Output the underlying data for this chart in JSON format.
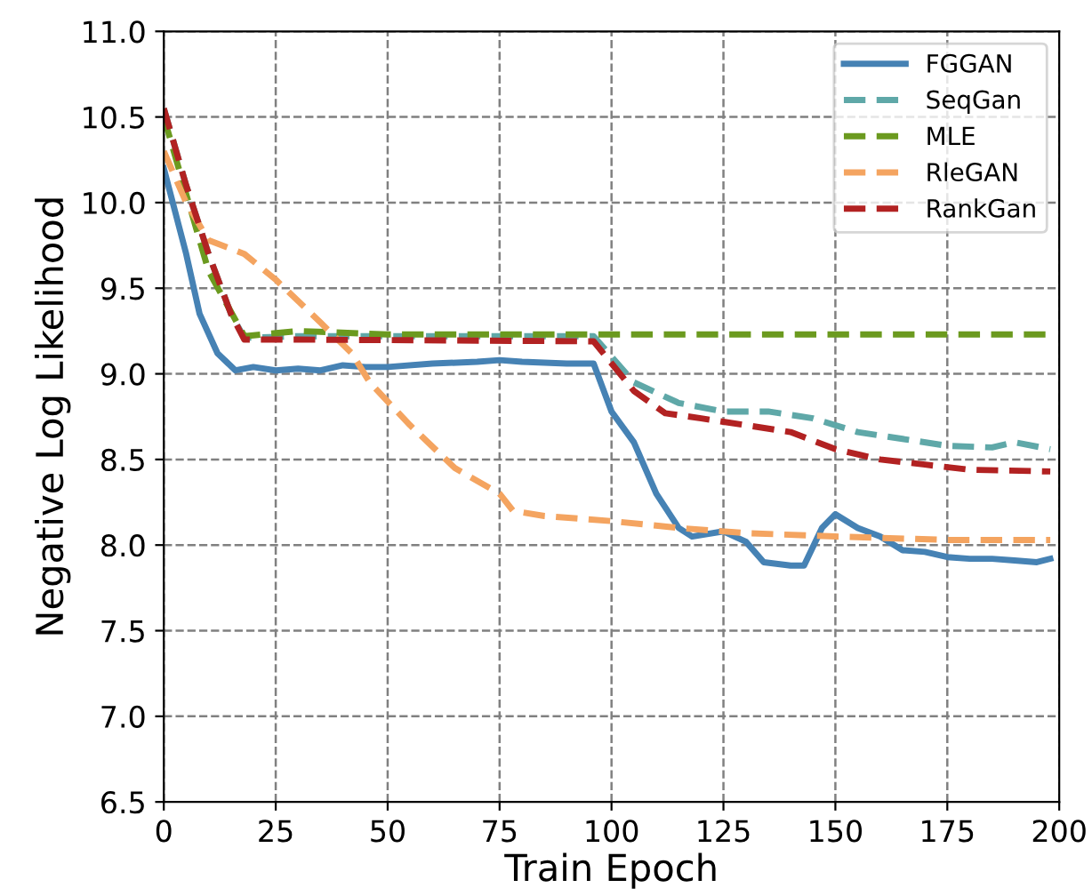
{
  "chart_data": {
    "type": "line",
    "xlabel": "Train Epoch",
    "ylabel": "Negative Log Likelihood",
    "xlim": [
      0,
      200
    ],
    "ylim": [
      6.5,
      11.0
    ],
    "xticks": [
      0,
      25,
      50,
      75,
      100,
      125,
      150,
      175,
      200
    ],
    "yticks": [
      {
        "value": 6.5,
        "label": "6.5"
      },
      {
        "value": 7.0,
        "label": "7.0"
      },
      {
        "value": 7.5,
        "label": "7.5"
      },
      {
        "value": 8.0,
        "label": "8.0"
      },
      {
        "value": 8.5,
        "label": "8.5"
      },
      {
        "value": 9.0,
        "label": "9.0"
      },
      {
        "value": 9.5,
        "label": "9.5"
      },
      {
        "value": 10.0,
        "label": "10.0"
      },
      {
        "value": 10.5,
        "label": "10.5"
      },
      {
        "value": 11.0,
        "label": "11.0"
      }
    ],
    "grid": true,
    "legend": "top right",
    "marker": "none",
    "series": [
      {
        "name": "FGGAN",
        "color": "#4682b4",
        "line_style": "solid",
        "x": [
          0,
          2,
          5,
          8,
          12,
          16,
          20,
          25,
          30,
          35,
          40,
          45,
          50,
          60,
          70,
          75,
          80,
          90,
          96,
          100,
          105,
          110,
          115,
          118,
          125,
          130,
          134,
          140,
          143,
          147,
          150,
          155,
          160,
          165,
          170,
          175,
          180,
          185,
          190,
          195,
          198
        ],
        "values": [
          10.2,
          10.0,
          9.7,
          9.35,
          9.12,
          9.02,
          9.04,
          9.02,
          9.03,
          9.02,
          9.05,
          9.04,
          9.04,
          9.06,
          9.07,
          9.08,
          9.07,
          9.06,
          9.06,
          8.78,
          8.6,
          8.3,
          8.1,
          8.05,
          8.08,
          8.02,
          7.9,
          7.88,
          7.88,
          8.1,
          8.18,
          8.1,
          8.05,
          7.97,
          7.96,
          7.93,
          7.92,
          7.92,
          7.91,
          7.9,
          7.92
        ]
      },
      {
        "name": "SeqGan",
        "color": "#5fa8a8",
        "line_style": "dashed",
        "x": [
          0,
          5,
          10,
          15,
          18,
          30,
          60,
          96,
          105,
          115,
          125,
          135,
          145,
          155,
          165,
          175,
          185,
          190,
          198
        ],
        "values": [
          10.55,
          10.1,
          9.7,
          9.35,
          9.21,
          9.22,
          9.22,
          9.22,
          8.95,
          8.83,
          8.78,
          8.78,
          8.74,
          8.66,
          8.62,
          8.58,
          8.57,
          8.6,
          8.56
        ]
      },
      {
        "name": "MLE",
        "color": "#6b9a1f",
        "line_style": "dashed",
        "x": [
          0,
          10,
          18,
          30,
          50,
          100,
          150,
          198
        ],
        "values": [
          10.5,
          9.6,
          9.22,
          9.25,
          9.23,
          9.23,
          9.23,
          9.23
        ]
      },
      {
        "name": "RleGAN",
        "color": "#f4a460",
        "line_style": "dashed",
        "x": [
          0,
          5,
          10,
          18,
          25,
          35,
          42,
          46,
          55,
          65,
          75,
          78,
          85,
          100,
          115,
          130,
          150,
          175,
          198
        ],
        "values": [
          10.3,
          10.0,
          9.78,
          9.7,
          9.55,
          9.3,
          9.12,
          8.95,
          8.7,
          8.45,
          8.3,
          8.2,
          8.17,
          8.14,
          8.1,
          8.07,
          8.05,
          8.03,
          8.03
        ]
      },
      {
        "name": "RankGan",
        "color": "#b22222",
        "line_style": "dashed",
        "x": [
          0,
          5,
          10,
          15,
          18,
          30,
          96,
          105,
          112,
          120,
          130,
          140,
          150,
          160,
          170,
          180,
          198
        ],
        "values": [
          10.55,
          10.1,
          9.7,
          9.35,
          9.2,
          9.2,
          9.19,
          8.9,
          8.77,
          8.74,
          8.7,
          8.66,
          8.56,
          8.5,
          8.47,
          8.44,
          8.43
        ]
      }
    ]
  }
}
